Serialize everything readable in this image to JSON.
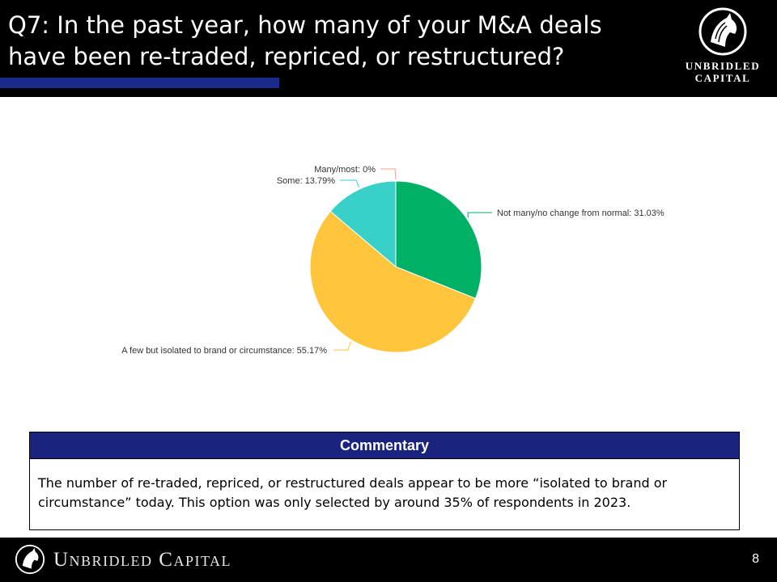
{
  "header": {
    "title_line1": "Q7: In the past year, how many of your M&A deals",
    "title_line2": "have been re-traded, repriced, or restructured?",
    "logo_line1": "UNBRIDLED",
    "logo_line2": "CAPITAL",
    "underline_color": "#1a2a8a"
  },
  "chart_data": {
    "type": "pie",
    "slices": [
      {
        "label": "Not many/no change from normal: 31.03%",
        "value": 31.03,
        "color": "#00b064",
        "label_side": "right"
      },
      {
        "label": "A few but isolated to brand or circumstance: 55.17%",
        "value": 55.17,
        "color": "#ffc53d",
        "label_side": "left"
      },
      {
        "label": "Some: 13.79%",
        "value": 13.79,
        "color": "#38d0c8",
        "label_side": "left"
      },
      {
        "label": "Many/most: 0%",
        "value": 0,
        "color": "#f4a183",
        "label_side": "left"
      }
    ]
  },
  "commentary": {
    "heading": "Commentary",
    "text": "The number of re-traded, repriced, or restructured deals appear to be more “isolated to brand or circumstance” today. This option was only selected by around 35% of respondents in 2023."
  },
  "footer": {
    "brand": "Unbridled Capital",
    "page_number": "8"
  }
}
